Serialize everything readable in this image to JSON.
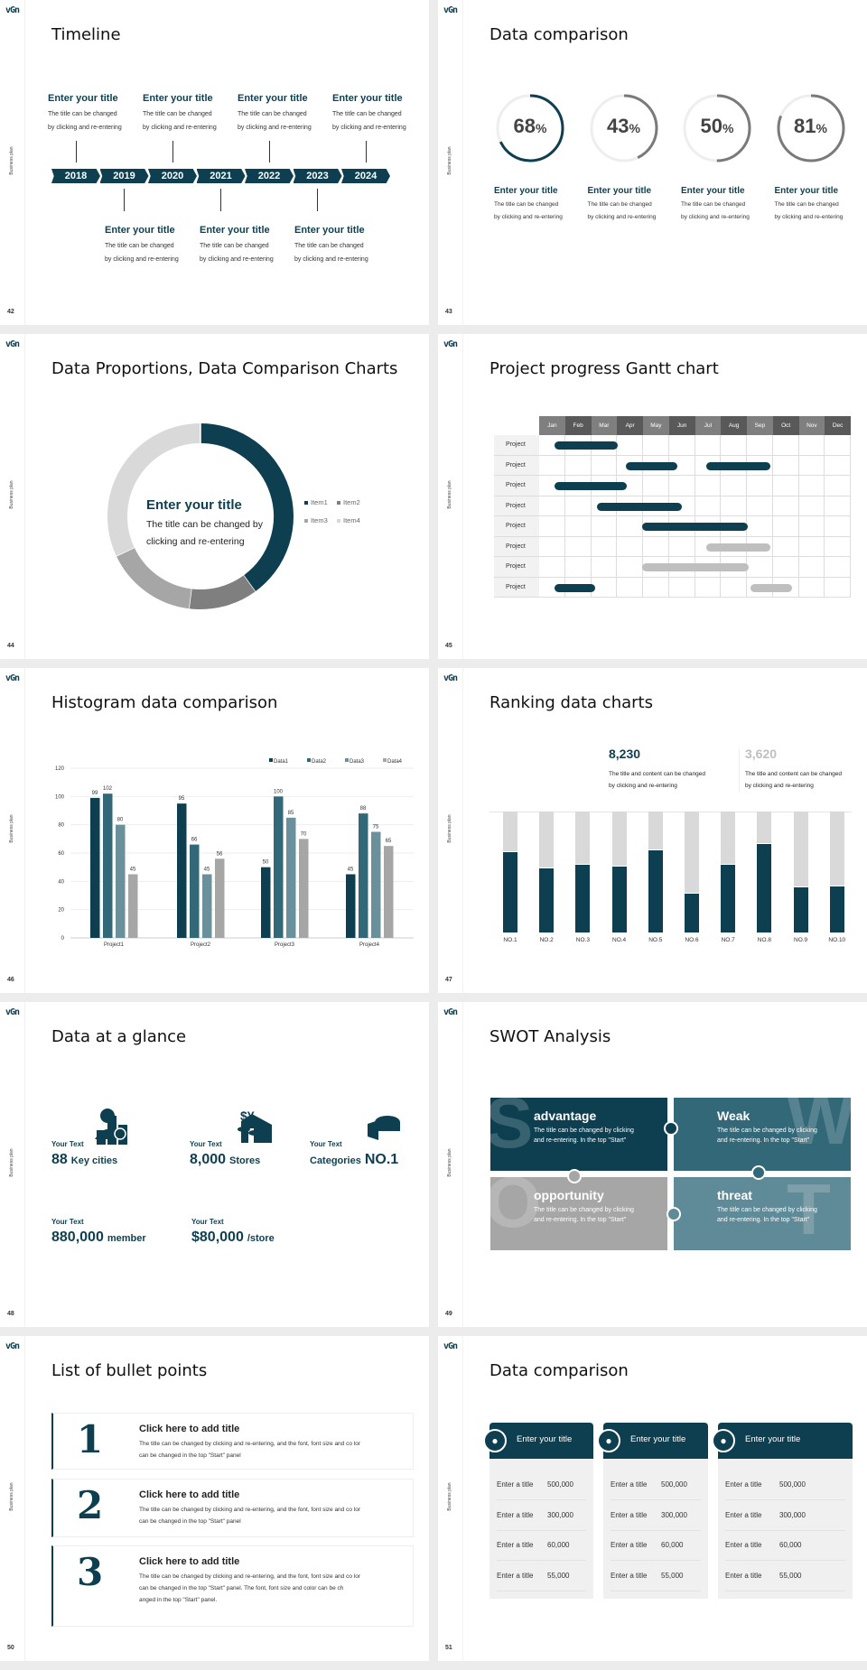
{
  "brand": {
    "logo": "vGn",
    "side_label": "Business plan"
  },
  "colors": {
    "dark": "#0d3f50",
    "teal": "#326878",
    "light_teal": "#6a909c",
    "gray": "#a6a6a6",
    "mid_gray": "#7f7f7f",
    "light_gray": "#d9d9d9"
  },
  "slides": [
    {
      "page": "42",
      "title": "Timeline"
    },
    {
      "page": "43",
      "title": "Data comparison"
    },
    {
      "page": "44",
      "title": "Data Proportions, Data Comparison Charts"
    },
    {
      "page": "45",
      "title": "Project progress Gantt chart"
    },
    {
      "page": "46",
      "title": "Histogram data comparison"
    },
    {
      "page": "47",
      "title": "Ranking data charts"
    },
    {
      "page": "48",
      "title": "Data at a glance"
    },
    {
      "page": "49",
      "title": "SWOT Analysis"
    },
    {
      "page": "50",
      "title": "List of bullet points"
    },
    {
      "page": "51",
      "title": "Data comparison"
    }
  ],
  "timeline": {
    "years": [
      "2018",
      "2019",
      "2020",
      "2021",
      "2022",
      "2023",
      "2024"
    ],
    "top": [
      {
        "title": "Enter your title",
        "d1": "The title can be changed",
        "d2": "by clicking and re-entering"
      },
      {
        "title": "Enter your title",
        "d1": "The title can be changed",
        "d2": "by clicking and re-entering"
      },
      {
        "title": "Enter your title",
        "d1": "The title can be changed",
        "d2": "by clicking and re-entering"
      },
      {
        "title": "Enter your title",
        "d1": "The title can be changed",
        "d2": "by clicking and re-entering"
      }
    ],
    "bottom": [
      {
        "title": "Enter your title",
        "d1": "The title can be changed",
        "d2": "by clicking and re-entering"
      },
      {
        "title": "Enter your title",
        "d1": "The title can be changed",
        "d2": "by clicking and re-entering"
      },
      {
        "title": "Enter your title",
        "d1": "The title can be changed",
        "d2": "by clicking and re-entering"
      }
    ]
  },
  "rings": [
    {
      "value": 68,
      "label": "68",
      "unit": "%",
      "color": "#0d3f50",
      "title": "Enter your title",
      "d1": "The title can be changed",
      "d2": "by clicking and re-entering"
    },
    {
      "value": 43,
      "label": "43",
      "unit": "%",
      "color": "#7a7a7a",
      "title": "Enter your title",
      "d1": "The title can be changed",
      "d2": "by clicking and re-entering"
    },
    {
      "value": 50,
      "label": "50",
      "unit": "%",
      "color": "#7a7a7a",
      "title": "Enter your title",
      "d1": "The title can be changed",
      "d2": "by clicking and re-entering"
    },
    {
      "value": 81,
      "label": "81",
      "unit": "%",
      "color": "#7a7a7a",
      "title": "Enter your title",
      "d1": "The title can be changed",
      "d2": "by clicking and re-entering"
    }
  ],
  "chart_data": [
    {
      "type": "pie",
      "subtype": "donut",
      "categories": [
        "Item1",
        "Item2",
        "Item3",
        "Item4"
      ],
      "values": [
        40,
        12,
        16,
        32
      ],
      "colors": [
        "#0d3f50",
        "#7f7f7f",
        "#a6a6a6",
        "#d9d9d9"
      ],
      "legend": "right",
      "center_title": "Enter your title",
      "center_d1": "The title can be changed by",
      "center_d2": "clicking and re-entering"
    },
    {
      "type": "gantt",
      "months": [
        "Jan",
        "Feb",
        "Mar",
        "Apr",
        "May",
        "Jun",
        "Jul",
        "Aug",
        "Sep",
        "Oct",
        "Nov",
        "Dec"
      ],
      "rows": [
        {
          "label": "Project",
          "bars": [
            {
              "start": 0.58,
              "end": 3.04,
              "status": "active"
            }
          ]
        },
        {
          "label": "Project",
          "bars": [
            {
              "start": 3.33,
              "end": 5.33,
              "status": "active"
            },
            {
              "start": 6.45,
              "end": 8.9,
              "status": "active"
            }
          ]
        },
        {
          "label": "Project",
          "bars": [
            {
              "start": 0.58,
              "end": 3.36,
              "status": "active"
            }
          ]
        },
        {
          "label": "Project",
          "bars": [
            {
              "start": 2.24,
              "end": 5.48,
              "status": "active"
            }
          ]
        },
        {
          "label": "Project",
          "bars": [
            {
              "start": 3.97,
              "end": 8.03,
              "status": "active"
            }
          ]
        },
        {
          "label": "Project",
          "bars": [
            {
              "start": 6.45,
              "end": 8.9,
              "status": "planned"
            }
          ]
        },
        {
          "label": "Project",
          "bars": [
            {
              "start": 3.97,
              "end": 8.07,
              "status": "planned"
            }
          ]
        },
        {
          "label": "Project",
          "bars": [
            {
              "start": 0.59,
              "end": 2.16,
              "status": "active"
            },
            {
              "start": 8.15,
              "end": 9.74,
              "status": "planned"
            }
          ]
        }
      ],
      "colors": {
        "active": "#0d3f50",
        "planned": "#bfbfbf"
      }
    },
    {
      "type": "bar",
      "categories": [
        "Project1",
        "Project2",
        "Project3",
        "Project4"
      ],
      "series": [
        {
          "name": "Data1",
          "values": [
            99,
            95,
            50,
            45
          ],
          "color": "#0d3f50"
        },
        {
          "name": "Data2",
          "values": [
            102,
            66,
            100,
            88
          ],
          "color": "#326878"
        },
        {
          "name": "Data3",
          "values": [
            80,
            45,
            85,
            75
          ],
          "color": "#6a909c"
        },
        {
          "name": "Data4",
          "values": [
            45,
            56,
            70,
            65
          ],
          "color": "#a6a6a6"
        }
      ],
      "ylim": [
        0,
        120
      ],
      "yticks": [
        "0",
        "20",
        "40",
        "60",
        "80",
        "100",
        "120"
      ],
      "grid": true,
      "legend": "top-right",
      "data_labels": true
    },
    {
      "type": "bar",
      "subtype": "stacked-100",
      "categories": [
        "NO.1",
        "NO.2",
        "NO.3",
        "NO.4",
        "NO.5",
        "NO.6",
        "NO.7",
        "NO.8",
        "NO.9",
        "NO.10"
      ],
      "values": [
        0.67,
        0.54,
        0.57,
        0.55,
        0.69,
        0.33,
        0.57,
        0.74,
        0.38,
        0.39
      ],
      "colors": [
        "#0d3f50",
        "#d9d9d9"
      ]
    }
  ],
  "ranking_stats": [
    {
      "value": "8,230",
      "d1": "The title and content can be changed",
      "d2": "by clicking and re-entering",
      "color": "#0d3f50"
    },
    {
      "value": "3,620",
      "d1": "The title and content can be changed",
      "d2": "by clicking and re-entering",
      "color": "#bfbfbf"
    }
  ],
  "glance": [
    {
      "label": "Your Text",
      "num": "88",
      "unit": "Key cities",
      "icon": "buildings-icon"
    },
    {
      "label": "Your Text",
      "num": "8,000",
      "unit": "Stores",
      "icon": "store-icon"
    },
    {
      "label": "Your Text",
      "pre": "Categories",
      "num": "NO.1",
      "icon": "pie-3d-icon"
    },
    {
      "label": "Your Text",
      "num": "880,000",
      "unit": "member",
      "icon": "add-member-icon"
    },
    {
      "label": "Your Text",
      "num": "$80,000",
      "unit": "/store",
      "icon": "coins-icon"
    }
  ],
  "swot": [
    {
      "letter": "S",
      "title": "advantage",
      "d1": "The title can be changed by clicking",
      "d2": "and re-entering. In the top \"Start\"",
      "color": "#0d3f50"
    },
    {
      "letter": "W",
      "title": "Weak",
      "d1": "The title can be changed by clicking",
      "d2": "and re-entering. In the top \"Start\"",
      "color": "#326878"
    },
    {
      "letter": "O",
      "title": "opportunity",
      "d1": "The title can be changed by clicking",
      "d2": "and re-entering. In the top \"Start\"",
      "color": "#a6a6a6"
    },
    {
      "letter": "T",
      "title": "threat",
      "d1": "The title can be changed by clicking",
      "d2": "and re-entering. In the top \"Start\"",
      "color": "#5f8a98"
    }
  ],
  "bullets": [
    {
      "num": "1",
      "title": "Click here to add title",
      "desc": "The title can be changed by clicking and re-entering, and the font, font size and co lor can be changed in the top \"Start\" panel"
    },
    {
      "num": "2",
      "title": "Click here to add title",
      "desc": "The title can be changed by clicking and re-entering, and the font, font size and co lor can be changed in the top \"Start\" panel"
    },
    {
      "num": "3",
      "title": "Click here to add title",
      "desc": "The title can be changed by clicking and re-entering, and the font, font size and co lor can be changed in the top \"Start\" panel. The font, font size and color can be ch anged in the top \"Start\" panel."
    }
  ],
  "tables": [
    {
      "title": "Enter your title",
      "icon": "phone-user-icon",
      "rows": [
        [
          "Enter a title",
          "500,000"
        ],
        [
          "Enter a title",
          "300,000"
        ],
        [
          "Enter a title",
          "60,000"
        ],
        [
          "Enter a title",
          "55,000"
        ]
      ]
    },
    {
      "title": "Enter your title",
      "icon": "user-add-icon",
      "rows": [
        [
          "Enter a title",
          "500,000"
        ],
        [
          "Enter a title",
          "300,000"
        ],
        [
          "Enter a title",
          "60,000"
        ],
        [
          "Enter a title",
          "55,000"
        ]
      ]
    },
    {
      "title": "Enter your title",
      "icon": "users-group-icon",
      "rows": [
        [
          "Enter a title",
          "500,000"
        ],
        [
          "Enter a title",
          "300,000"
        ],
        [
          "Enter a title",
          "60,000"
        ],
        [
          "Enter a title",
          "55,000"
        ]
      ]
    }
  ]
}
